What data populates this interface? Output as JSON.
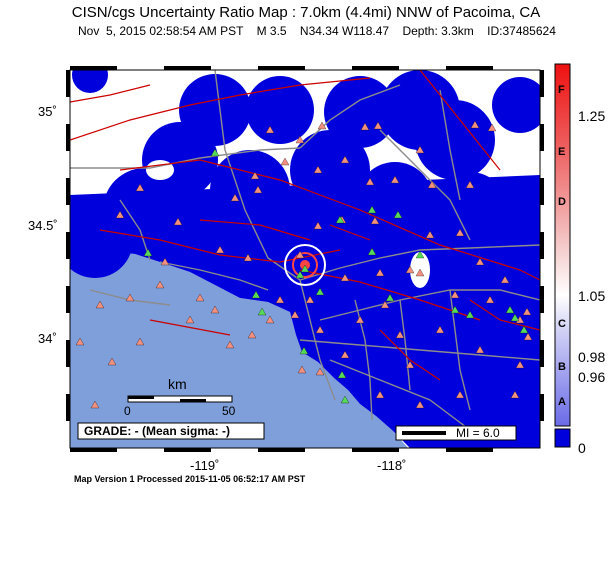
{
  "header": {
    "title": "CISN/cgs Uncertainty Ratio Map : 7.0km (4.4mi) NNW of Pacoima, CA",
    "date": "Nov  5, 2015 02:58:54 AM PST",
    "magnitude": "M 3.5",
    "coords": "N34.34 W118.47",
    "depth": "Depth: 3.3km",
    "event_id": "ID:37485624"
  },
  "map": {
    "lat_labels": [
      "35˚",
      "34.5˚",
      "34˚"
    ],
    "lon_labels": [
      "-119˚",
      "-118˚"
    ],
    "scale": {
      "unit": "km",
      "min": "0",
      "max": "50"
    },
    "grade_box": "GRADE: - (Mean sigma: -)",
    "mi_legend": "MI = 6.0",
    "colors": {
      "water": "#7f9fdb",
      "land": "#ffffff",
      "low_ratio": "#0000dd",
      "faults": "#cc0000",
      "roads": "#8c8c8c",
      "stations_red": "#f29080",
      "stations_green": "#58d858"
    }
  },
  "colorbar": {
    "letters": [
      "F",
      "E",
      "D",
      "C",
      "B",
      "A"
    ],
    "ticks": [
      "1.25",
      "1.05",
      "0.98",
      "0.96",
      "0"
    ]
  },
  "footer": "Map Version 1 Processed 2015-11-05 06:52:17 AM PST"
}
